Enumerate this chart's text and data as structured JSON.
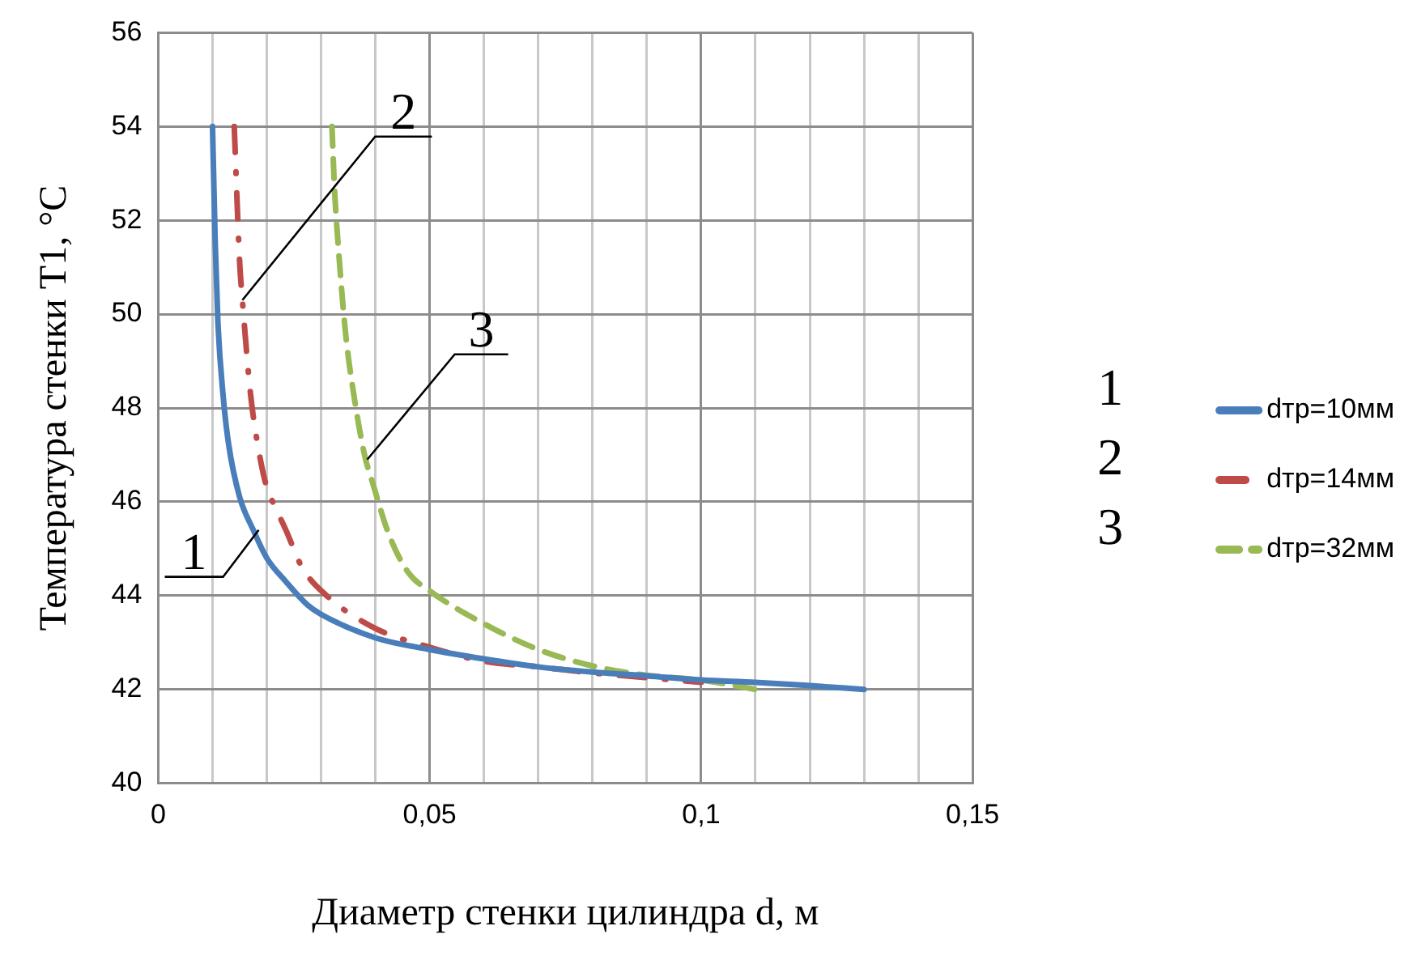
{
  "chart_data": {
    "type": "line",
    "xlabel": "Диаметр стенки цилиндра d, м",
    "ylabel": "Температура стенки T1, °C",
    "xlim": [
      0,
      0.15
    ],
    "xticks": [
      0,
      {
        "value": 0.01,
        "label": null
      },
      {
        "value": 0.02,
        "label": null
      },
      {
        "value": 0.03,
        "label": null
      },
      {
        "value": 0.04,
        "label": null
      },
      {
        "value": 0.05,
        "label": "0,05"
      },
      {
        "value": 0.06,
        "label": null
      },
      {
        "value": 0.07,
        "label": null
      },
      {
        "value": 0.08,
        "label": null
      },
      {
        "value": 0.09,
        "label": null
      },
      {
        "value": 0.1,
        "label": "0,1"
      },
      {
        "value": 0.11,
        "label": null
      },
      {
        "value": 0.12,
        "label": null
      },
      {
        "value": 0.13,
        "label": null
      },
      {
        "value": 0.14,
        "label": null
      },
      {
        "value": 0.15,
        "label": "0,15"
      }
    ],
    "ylim": [
      40,
      56
    ],
    "yticks": [
      40,
      42,
      44,
      46,
      48,
      50,
      52,
      54,
      56
    ],
    "grid": true,
    "legend": "right",
    "marker": "none",
    "series": [
      {
        "name": "dтр=10мм",
        "color": "#4a7ebb",
        "line_style": "solid",
        "x": [
          0.01,
          0.0105,
          0.011,
          0.012,
          0.013,
          0.015,
          0.0175,
          0.02,
          0.0235,
          0.0275,
          0.03,
          0.04,
          0.05,
          0.06,
          0.07,
          0.08,
          0.09,
          0.1,
          0.11,
          0.12,
          0.13
        ],
        "values": [
          54,
          51.5,
          49.8,
          48.2,
          47.2,
          46.1,
          45.4,
          44.8,
          44.3,
          43.8,
          43.6,
          43.1,
          42.85,
          42.65,
          42.48,
          42.37,
          42.29,
          42.2,
          42.15,
          42.08,
          42
        ]
      },
      {
        "name": "dтр=14мм",
        "color": "#be4b48",
        "line_style": "dashdot",
        "x": [
          0.014,
          0.015,
          0.0155,
          0.017,
          0.0185,
          0.02,
          0.0215,
          0.0235,
          0.0265,
          0.031,
          0.04,
          0.05,
          0.06,
          0.07,
          0.08,
          0.09,
          0.1
        ],
        "values": [
          54,
          51.1,
          50.3,
          48.3,
          47.1,
          46.3,
          45.9,
          45.4,
          44.6,
          44,
          43.3,
          42.9,
          42.6,
          42.48,
          42.35,
          42.25,
          42.15
        ]
      },
      {
        "name": "dтр=32мм",
        "color": "#98b954",
        "line_style": "dashed",
        "x": [
          0.032,
          0.0325,
          0.033,
          0.0345,
          0.036,
          0.038,
          0.0395,
          0.0425,
          0.046,
          0.05,
          0.06,
          0.07,
          0.08,
          0.09,
          0.1,
          0.11
        ],
        "values": [
          54,
          52.6,
          51.7,
          49.6,
          48.3,
          47,
          46.4,
          45.3,
          44.5,
          44.1,
          43.4,
          42.85,
          42.5,
          42.3,
          42.2,
          42
        ]
      }
    ],
    "annotations": [
      {
        "text": "1",
        "x": 0.0185,
        "y": 45.4
      },
      {
        "text": "2",
        "x": 0.0155,
        "y": 50.3
      },
      {
        "text": "3",
        "x": 0.0385,
        "y": 46.9
      },
      "1",
      "2",
      "3"
    ]
  }
}
